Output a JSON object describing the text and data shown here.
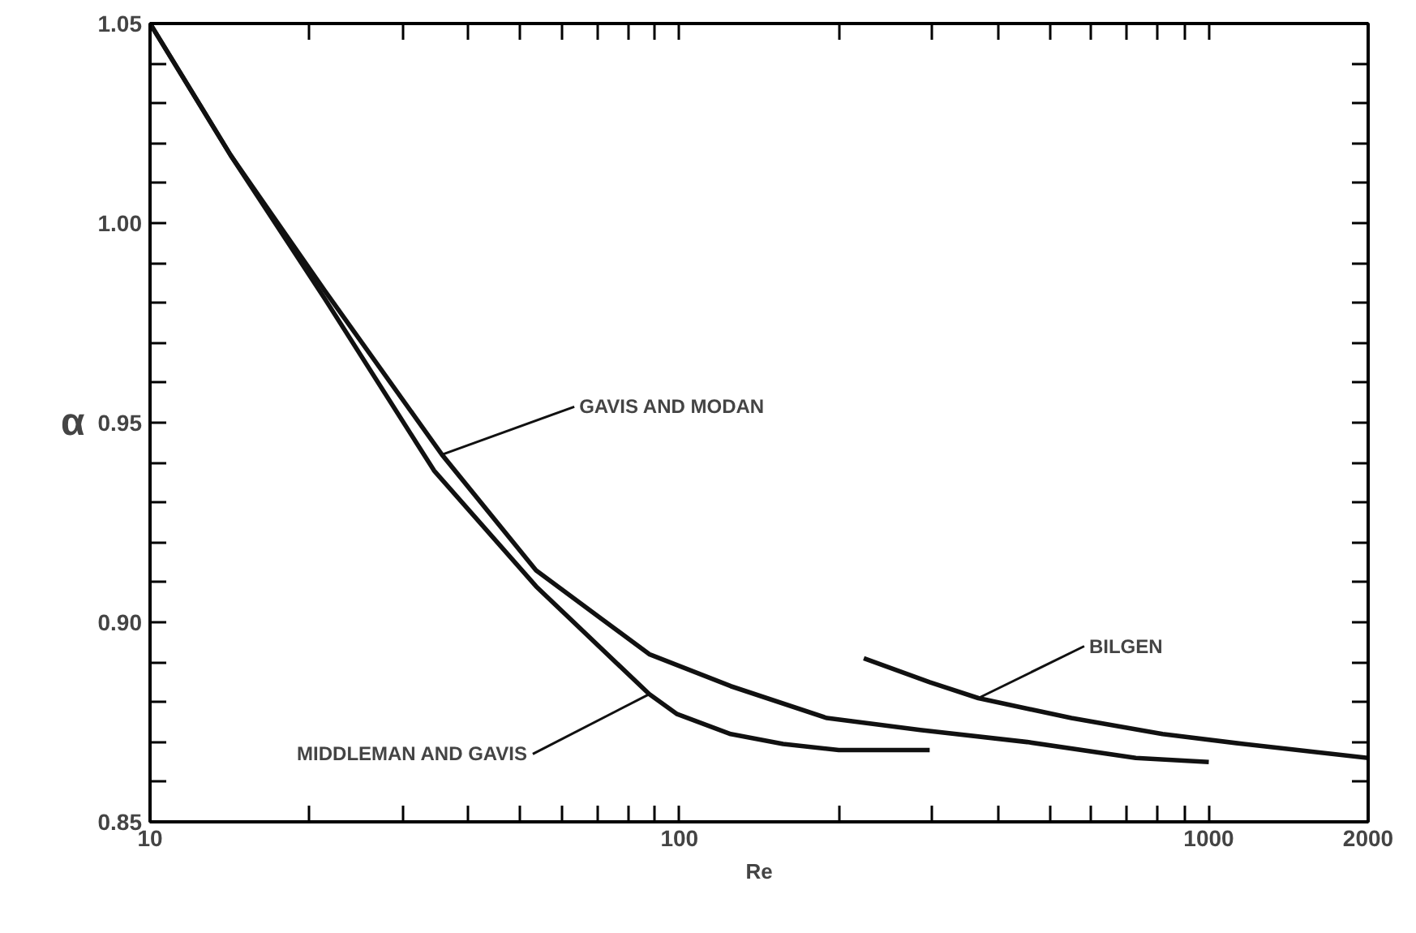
{
  "chart_data": {
    "type": "line",
    "xlabel": "Re",
    "ylabel": "α",
    "log": "x",
    "xlim": [
      10,
      2000
    ],
    "ylim": [
      0.85,
      1.05
    ],
    "xticks": [
      10,
      {
        "value": 20,
        "label": null
      },
      {
        "value": 30,
        "label": null
      },
      {
        "value": 40,
        "label": null
      },
      {
        "value": 50,
        "label": null
      },
      {
        "value": 60,
        "label": null
      },
      {
        "value": 70,
        "label": null
      },
      {
        "value": 80,
        "label": null
      },
      {
        "value": 90,
        "label": null
      },
      100,
      {
        "value": 200,
        "label": null
      },
      {
        "value": 300,
        "label": null
      },
      {
        "value": 400,
        "label": null
      },
      {
        "value": 500,
        "label": null
      },
      {
        "value": 600,
        "label": null
      },
      {
        "value": 700,
        "label": null
      },
      {
        "value": 800,
        "label": null
      },
      {
        "value": 900,
        "label": null
      },
      1000,
      2000
    ],
    "yticks": [
      0.85,
      {
        "value": 0.86,
        "label": null
      },
      {
        "value": 0.87,
        "label": null
      },
      {
        "value": 0.88,
        "label": null
      },
      {
        "value": 0.89,
        "label": null
      },
      {
        "value": 0.9,
        "label": "0.90"
      },
      {
        "value": 0.91,
        "label": null
      },
      {
        "value": 0.92,
        "label": null
      },
      {
        "value": 0.93,
        "label": null
      },
      {
        "value": 0.94,
        "label": null
      },
      0.95,
      {
        "value": 0.96,
        "label": null
      },
      {
        "value": 0.97,
        "label": null
      },
      {
        "value": 0.98,
        "label": null
      },
      {
        "value": 0.99,
        "label": null
      },
      {
        "value": 1.0,
        "label": "1.00"
      },
      {
        "value": 1.01,
        "label": null
      },
      {
        "value": 1.02,
        "label": null
      },
      {
        "value": 1.03,
        "label": null
      },
      {
        "value": 1.04,
        "label": null
      },
      1.05
    ],
    "grid": false,
    "marker": "none",
    "line_style": "solid",
    "series": [
      {
        "color": "#111111",
        "x": [
          10,
          14.2,
          21.4,
          35.6,
          53.6,
          87.7,
          125,
          190,
          285,
          454,
          728,
          1000
        ],
        "values": [
          1.05,
          1.017,
          0.983,
          0.942,
          0.913,
          0.892,
          0.884,
          0.876,
          0.873,
          0.87,
          0.866,
          0.865
        ]
      },
      {
        "color": "#111111",
        "x": [
          10,
          14.2,
          21.4,
          34.4,
          53.6,
          87.7,
          99,
          125,
          157,
          200,
          297
        ],
        "values": [
          1.05,
          1.017,
          0.981,
          0.938,
          0.909,
          0.882,
          0.877,
          0.872,
          0.8695,
          0.868,
          0.868
        ]
      },
      {
        "color": "#111111",
        "x": [
          223,
          297,
          367,
          550,
          818,
          1164,
          2000
        ],
        "values": [
          0.891,
          0.885,
          0.881,
          0.876,
          0.872,
          0.8695,
          0.866
        ]
      }
    ],
    "annotations": [
      {
        "text": "GAVIS AND MODAN",
        "x": 35.6,
        "y": 0.942
      },
      {
        "text": "MIDDLEMAN AND GAVIS",
        "x": 87.7,
        "y": 0.882
      },
      {
        "text": "BILGEN",
        "x": 367,
        "y": 0.881
      }
    ]
  }
}
